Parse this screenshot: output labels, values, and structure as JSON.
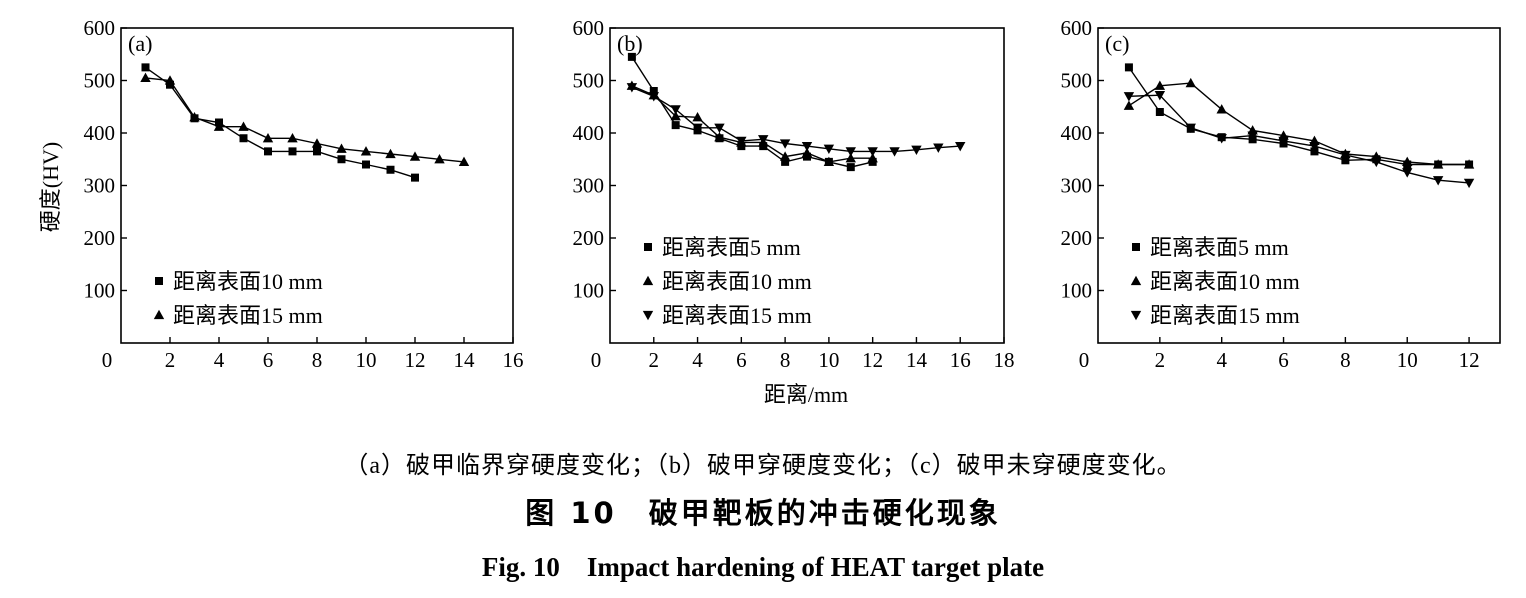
{
  "figure": {
    "y_axis_label": "硬度(HV)",
    "x_axis_label": "距离/mm",
    "subcaption": "（a）破甲临界穿硬度变化；（b）破甲穿硬度变化；（c）破甲未穿硬度变化。",
    "caption_cn": "图 10　破甲靶板的冲击硬化现象",
    "caption_en": "Fig. 10　Impact hardening of HEAT target plate"
  },
  "chart_data": [
    {
      "type": "line",
      "panel_label": "(a)",
      "xlim": [
        0,
        16
      ],
      "ylim": [
        0,
        600
      ],
      "x_ticks": [
        0,
        2,
        4,
        6,
        8,
        10,
        12,
        14,
        16
      ],
      "y_ticks": [
        100,
        200,
        300,
        400,
        500,
        600
      ],
      "legend_position": "bottom-left",
      "series": [
        {
          "name": "距离表面10 mm",
          "marker": "square",
          "x": [
            1,
            2,
            3,
            4,
            5,
            6,
            7,
            8,
            9,
            10,
            11,
            12
          ],
          "y": [
            525,
            492,
            428,
            420,
            390,
            365,
            365,
            365,
            350,
            340,
            330,
            315
          ]
        },
        {
          "name": "距离表面15 mm",
          "marker": "triangle-up",
          "x": [
            1,
            2,
            3,
            4,
            5,
            6,
            7,
            8,
            9,
            10,
            11,
            12,
            13,
            14
          ],
          "y": [
            505,
            500,
            430,
            412,
            412,
            390,
            390,
            380,
            370,
            365,
            360,
            355,
            350,
            345
          ]
        }
      ]
    },
    {
      "type": "line",
      "panel_label": "(b)",
      "xlim": [
        0,
        18
      ],
      "ylim": [
        0,
        600
      ],
      "x_ticks": [
        0,
        2,
        4,
        6,
        8,
        10,
        12,
        14,
        16,
        18
      ],
      "y_ticks": [
        100,
        200,
        300,
        400,
        500,
        600
      ],
      "legend_position": "bottom-left",
      "series": [
        {
          "name": "距离表面5 mm",
          "marker": "square",
          "x": [
            1,
            2,
            3,
            4,
            5,
            6,
            7,
            8,
            9,
            10,
            11,
            12
          ],
          "y": [
            545,
            480,
            415,
            405,
            390,
            375,
            375,
            345,
            355,
            345,
            335,
            345
          ]
        },
        {
          "name": "距离表面10 mm",
          "marker": "triangle-up",
          "x": [
            1,
            2,
            3,
            4,
            5,
            6,
            7,
            8,
            9,
            10,
            11,
            12
          ],
          "y": [
            490,
            472,
            432,
            430,
            392,
            382,
            382,
            355,
            362,
            345,
            352,
            352
          ]
        },
        {
          "name": "距离表面15 mm",
          "marker": "triangle-down",
          "x": [
            1,
            2,
            3,
            4,
            5,
            6,
            7,
            8,
            9,
            10,
            11,
            12,
            13,
            14,
            15,
            16
          ],
          "y": [
            487,
            470,
            445,
            410,
            410,
            385,
            388,
            380,
            375,
            370,
            365,
            365,
            365,
            368,
            372,
            375
          ]
        }
      ]
    },
    {
      "type": "line",
      "panel_label": "(c)",
      "xlim": [
        0,
        13
      ],
      "ylim": [
        0,
        600
      ],
      "x_ticks": [
        0,
        2,
        4,
        6,
        8,
        10,
        12
      ],
      "y_ticks": [
        100,
        200,
        300,
        400,
        500,
        600
      ],
      "legend_position": "bottom-left",
      "series": [
        {
          "name": "距离表面5 mm",
          "marker": "square",
          "x": [
            1,
            2,
            3,
            4,
            5,
            6,
            7,
            8,
            9,
            10,
            11,
            12
          ],
          "y": [
            525,
            440,
            408,
            392,
            388,
            380,
            365,
            348,
            350,
            340,
            340,
            340
          ]
        },
        {
          "name": "距离表面10 mm",
          "marker": "triangle-up",
          "x": [
            1,
            2,
            3,
            4,
            5,
            6,
            7,
            8,
            9,
            10,
            11,
            12
          ],
          "y": [
            452,
            490,
            495,
            445,
            405,
            395,
            385,
            360,
            355,
            345,
            340,
            340
          ]
        },
        {
          "name": "距离表面15 mm",
          "marker": "triangle-down",
          "x": [
            1,
            2,
            3,
            4,
            5,
            6,
            7,
            8,
            9,
            10,
            11,
            12
          ],
          "y": [
            470,
            472,
            410,
            390,
            395,
            385,
            375,
            358,
            345,
            325,
            310,
            305
          ]
        }
      ]
    }
  ]
}
